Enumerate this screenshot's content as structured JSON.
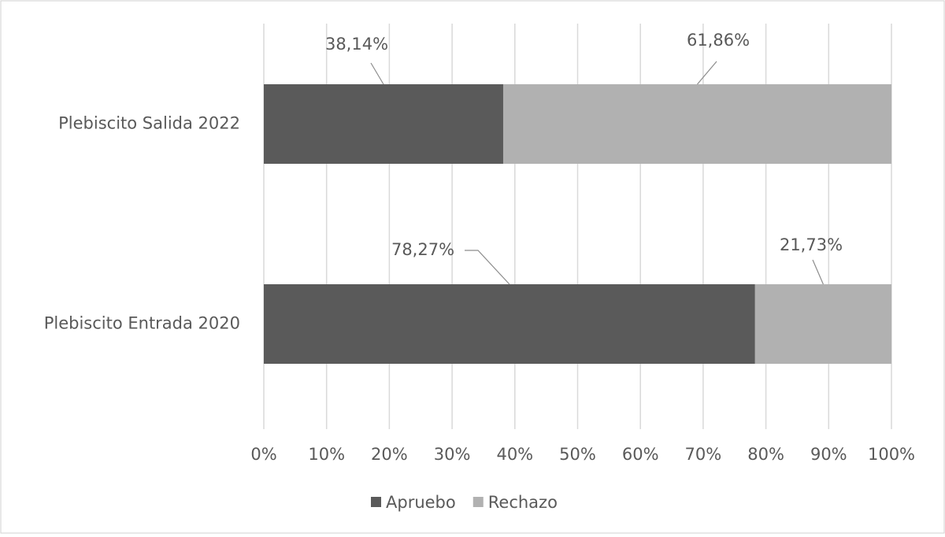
{
  "chart_data": {
    "type": "stacked-bar-horizontal",
    "categories": [
      "Plebiscito Salida 2022",
      "Plebiscito Entrada 2020"
    ],
    "series": [
      {
        "name": "Apruebo",
        "color": "#5a5a5a",
        "values": [
          38.14,
          78.27
        ],
        "value_labels": [
          "38,14%",
          "78,27%"
        ]
      },
      {
        "name": "Rechazo",
        "color": "#b1b1b1",
        "values": [
          61.86,
          21.73
        ],
        "value_labels": [
          "61,86%",
          "21,73%"
        ]
      }
    ],
    "xlim": [
      0,
      100
    ],
    "xticks": [
      {
        "value": 0,
        "label": "0%"
      },
      {
        "value": 10,
        "label": "10%"
      },
      {
        "value": 20,
        "label": "20%"
      },
      {
        "value": 30,
        "label": "30%"
      },
      {
        "value": 40,
        "label": "40%"
      },
      {
        "value": 50,
        "label": "50%"
      },
      {
        "value": 60,
        "label": "60%"
      },
      {
        "value": 70,
        "label": "70%"
      },
      {
        "value": 80,
        "label": "80%"
      },
      {
        "value": 90,
        "label": "90%"
      },
      {
        "value": 100,
        "label": "100%"
      }
    ],
    "grid": true,
    "legend": "bottom"
  }
}
